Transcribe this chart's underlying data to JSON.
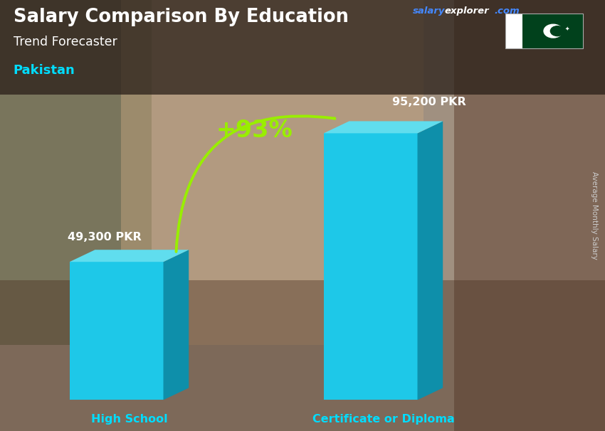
{
  "title_main": "Salary Comparison By Education",
  "title_sub": "Trend Forecaster",
  "country": "Pakistan",
  "ylabel": "Average Monthly Salary",
  "categories": [
    "High School",
    "Certificate or Diploma"
  ],
  "values": [
    49300,
    95200
  ],
  "labels": [
    "49,300 PKR",
    "95,200 PKR"
  ],
  "pct_change": "+93%",
  "bar_color_face": "#1EC8E8",
  "bar_color_right": "#0E8FAA",
  "bar_color_top": "#60DDEE",
  "bar_color_top_right": "#40BBCC",
  "bg_color_main": "#9a8070",
  "bg_color_dark": "#5a4030",
  "title_bg_color": "#2a1f18",
  "title_color": "#ffffff",
  "subtitle_color": "#ffffff",
  "country_color": "#00DDFF",
  "xlabel_color": "#00DDFF",
  "pct_color": "#99EE00",
  "arrow_color": "#99EE00",
  "salary_label_color": "#ffffff",
  "watermark_salary_color": "#4488ff",
  "watermark_explorer_color": "#ffffff",
  "right_text_color": "#cccccc",
  "flag_green": "#01411C",
  "figsize": [
    8.5,
    6.06
  ],
  "dpi": 100
}
